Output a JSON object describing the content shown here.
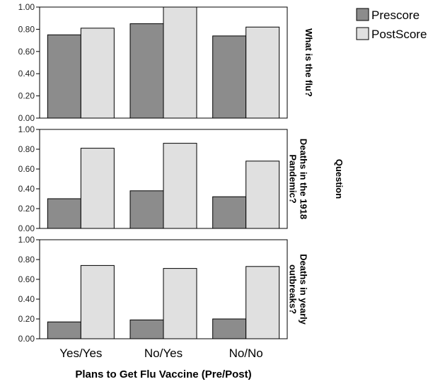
{
  "chart_data": {
    "type": "bar",
    "facet_title": "Question",
    "xlabel": "Plans to Get Flu Vaccine (Pre/Post)",
    "categories": [
      "Yes/Yes",
      "No/Yes",
      "No/No"
    ],
    "ylim": [
      0,
      1.0
    ],
    "yticks": [
      "0.00",
      "0.20",
      "0.40",
      "0.60",
      "0.80",
      "1.00"
    ],
    "legend_position": "top-right",
    "grid": false,
    "colors": {
      "Prescore": "#8c8c8c",
      "PostScore": "#e0e0e0"
    },
    "panels": [
      {
        "label": [
          "What is the flu?"
        ],
        "series": [
          {
            "name": "Prescore",
            "values": [
              0.75,
              0.85,
              0.74
            ]
          },
          {
            "name": "PostScore",
            "values": [
              0.81,
              1.0,
              0.82
            ]
          }
        ]
      },
      {
        "label": [
          "Deaths in the 1918",
          "Pandemic?"
        ],
        "series": [
          {
            "name": "Prescore",
            "values": [
              0.3,
              0.38,
              0.32
            ]
          },
          {
            "name": "PostScore",
            "values": [
              0.81,
              0.86,
              0.68
            ]
          }
        ]
      },
      {
        "label": [
          "Deaths in yearly",
          "outbreaks?"
        ],
        "series": [
          {
            "name": "Prescore",
            "values": [
              0.17,
              0.19,
              0.2
            ]
          },
          {
            "name": "PostScore",
            "values": [
              0.74,
              0.71,
              0.73
            ]
          }
        ]
      }
    ]
  }
}
